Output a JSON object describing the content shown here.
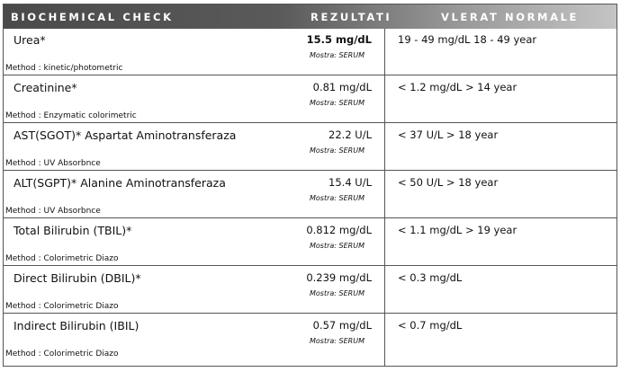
{
  "header": {
    "test_col": "BIOCHEMICAL CHECK",
    "result_col": "REZULTATI",
    "reference_col": "VLERAT NORMALE"
  },
  "rows": [
    {
      "name": "Urea*",
      "result": "15.5 mg/dL",
      "result_bold": true,
      "sample": "Mostra: SERUM",
      "method": "Method : kinetic/photometric",
      "reference": "19 - 49    mg/dL 18 - 49  year"
    },
    {
      "name": "Creatinine*",
      "result": "0.81 mg/dL",
      "result_bold": false,
      "sample": "Mostra: SERUM",
      "method": "Method : Enzymatic colorimetric",
      "reference": "< 1.2   mg/dL  > 14 year"
    },
    {
      "name": "AST(SGOT)* Aspartat Aminotransferaza",
      "result": "22.2 U/L",
      "result_bold": false,
      "sample": "Mostra: SERUM",
      "method": "Method : UV Absorbnce",
      "reference": "< 37    U/L  > 18 year"
    },
    {
      "name": "ALT(SGPT)* Alanine Aminotransferaza",
      "result": "15.4 U/L",
      "result_bold": false,
      "sample": "Mostra: SERUM",
      "method": "Method : UV Absorbnce",
      "reference": "< 50    U/L  > 18 year"
    },
    {
      "name": "Total Bilirubin (TBIL)*",
      "result": "0.812 mg/dL",
      "result_bold": false,
      "sample": "Mostra: SERUM",
      "method": "Method : Colorimetric Diazo",
      "reference": "< 1.1   mg/dL  > 19 year"
    },
    {
      "name": "Direct Bilirubin (DBIL)*",
      "result": "0.239 mg/dL",
      "result_bold": false,
      "sample": "Mostra: SERUM",
      "method": "Method : Colorimetric Diazo",
      "reference": "< 0.3   mg/dL"
    },
    {
      "name": "Indirect Bilirubin (IBIL)",
      "result": "0.57 mg/dL",
      "result_bold": false,
      "sample": "Mostra: SERUM",
      "method": "Method : Colorimetric Diazo",
      "reference": "< 0.7   mg/dL"
    }
  ]
}
